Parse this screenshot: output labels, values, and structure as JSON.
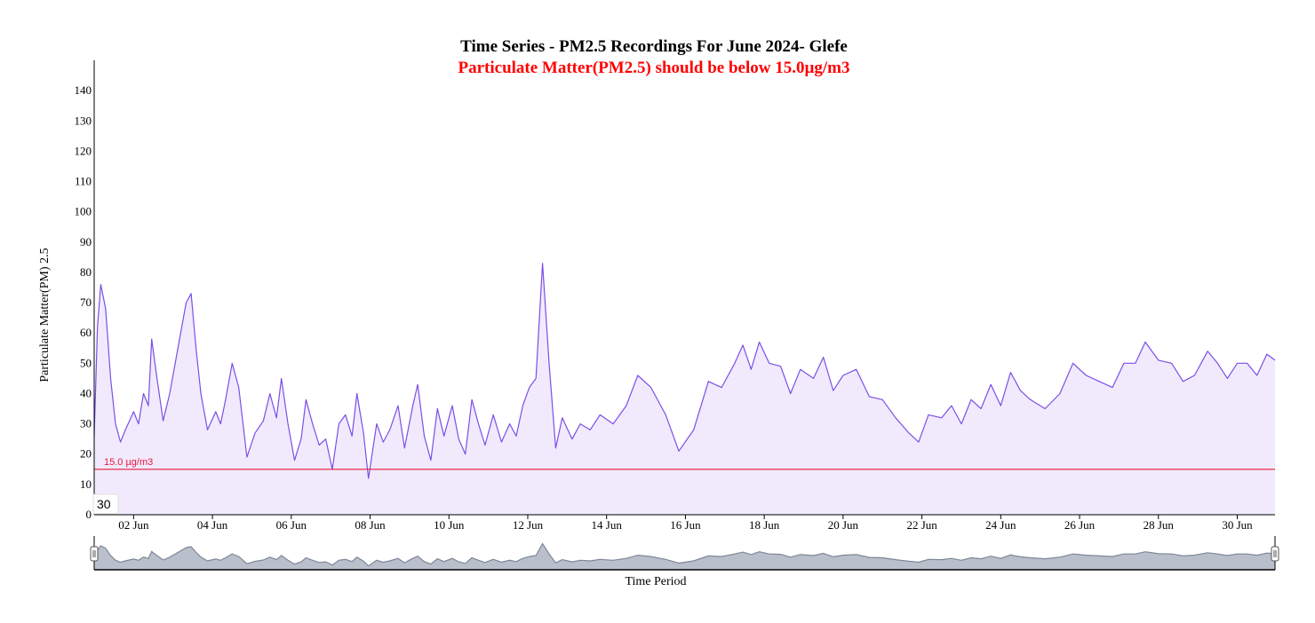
{
  "chart_data": {
    "type": "area",
    "title": "Time Series - PM2.5 Recordings For June 2024- Glefe",
    "subtitle": "Particulate Matter(PM2.5) should be below 15.0µg/m3",
    "xlabel": "Time Period",
    "ylabel": "Particulate Matter(PM) 2.5",
    "ylim": [
      0,
      150
    ],
    "xlim": [
      "2024-06-01 00:00",
      "2024-06-30 23:00"
    ],
    "y_ticks": [
      "0",
      "10",
      "20",
      "30",
      "40",
      "50",
      "60",
      "70",
      "80",
      "90",
      "100",
      "110",
      "120",
      "130",
      "140"
    ],
    "x_ticks": [
      "02 Jun",
      "04 Jun",
      "06 Jun",
      "08 Jun",
      "10 Jun",
      "12 Jun",
      "14 Jun",
      "16 Jun",
      "18 Jun",
      "20 Jun",
      "22 Jun",
      "24 Jun",
      "26 Jun",
      "28 Jun",
      "30 Jun"
    ],
    "threshold": {
      "value": 15,
      "label": "15.0 µg/m3",
      "color": "#e8193c"
    },
    "hover_value": "30",
    "series": [
      {
        "color": "#7b4fe6",
        "fill": "#f1eafd",
        "points": [
          [
            "2024-06-01 00:00",
            26
          ],
          [
            "2024-06-01 02:00",
            62
          ],
          [
            "2024-06-01 04:00",
            76
          ],
          [
            "2024-06-01 07:00",
            68
          ],
          [
            "2024-06-01 10:00",
            45
          ],
          [
            "2024-06-01 13:00",
            30
          ],
          [
            "2024-06-01 16:00",
            24
          ],
          [
            "2024-06-01 19:00",
            28
          ],
          [
            "2024-06-02 00:00",
            34
          ],
          [
            "2024-06-02 03:00",
            30
          ],
          [
            "2024-06-02 06:00",
            40
          ],
          [
            "2024-06-02 09:00",
            36
          ],
          [
            "2024-06-02 11:00",
            58
          ],
          [
            "2024-06-02 14:00",
            46
          ],
          [
            "2024-06-02 18:00",
            31
          ],
          [
            "2024-06-02 22:00",
            40
          ],
          [
            "2024-06-03 04:00",
            58
          ],
          [
            "2024-06-03 08:00",
            70
          ],
          [
            "2024-06-03 11:00",
            73
          ],
          [
            "2024-06-03 14:00",
            55
          ],
          [
            "2024-06-03 17:00",
            40
          ],
          [
            "2024-06-03 21:00",
            28
          ],
          [
            "2024-06-04 02:00",
            34
          ],
          [
            "2024-06-04 05:00",
            30
          ],
          [
            "2024-06-04 08:00",
            38
          ],
          [
            "2024-06-04 12:00",
            50
          ],
          [
            "2024-06-04 16:00",
            42
          ],
          [
            "2024-06-04 21:00",
            19
          ],
          [
            "2024-06-05 02:00",
            27
          ],
          [
            "2024-06-05 07:00",
            31
          ],
          [
            "2024-06-05 11:00",
            40
          ],
          [
            "2024-06-05 15:00",
            32
          ],
          [
            "2024-06-05 18:00",
            45
          ],
          [
            "2024-06-05 22:00",
            30
          ],
          [
            "2024-06-06 02:00",
            18
          ],
          [
            "2024-06-06 06:00",
            25
          ],
          [
            "2024-06-06 09:00",
            38
          ],
          [
            "2024-06-06 13:00",
            30
          ],
          [
            "2024-06-06 17:00",
            23
          ],
          [
            "2024-06-06 21:00",
            25
          ],
          [
            "2024-06-07 01:00",
            15
          ],
          [
            "2024-06-07 05:00",
            30
          ],
          [
            "2024-06-07 09:00",
            33
          ],
          [
            "2024-06-07 13:00",
            26
          ],
          [
            "2024-06-07 16:00",
            40
          ],
          [
            "2024-06-07 20:00",
            27
          ],
          [
            "2024-06-07 23:00",
            12
          ],
          [
            "2024-06-08 04:00",
            30
          ],
          [
            "2024-06-08 08:00",
            24
          ],
          [
            "2024-06-08 12:00",
            28
          ],
          [
            "2024-06-08 17:00",
            36
          ],
          [
            "2024-06-08 21:00",
            22
          ],
          [
            "2024-06-09 02:00",
            36
          ],
          [
            "2024-06-09 05:00",
            43
          ],
          [
            "2024-06-09 09:00",
            26
          ],
          [
            "2024-06-09 13:00",
            18
          ],
          [
            "2024-06-09 17:00",
            35
          ],
          [
            "2024-06-09 21:00",
            26
          ],
          [
            "2024-06-10 02:00",
            36
          ],
          [
            "2024-06-10 06:00",
            25
          ],
          [
            "2024-06-10 10:00",
            20
          ],
          [
            "2024-06-10 14:00",
            38
          ],
          [
            "2024-06-10 18:00",
            30
          ],
          [
            "2024-06-10 22:00",
            23
          ],
          [
            "2024-06-11 03:00",
            33
          ],
          [
            "2024-06-11 08:00",
            24
          ],
          [
            "2024-06-11 13:00",
            30
          ],
          [
            "2024-06-11 17:00",
            26
          ],
          [
            "2024-06-11 21:00",
            36
          ],
          [
            "2024-06-12 01:00",
            42
          ],
          [
            "2024-06-12 05:00",
            45
          ],
          [
            "2024-06-12 09:00",
            83
          ],
          [
            "2024-06-12 13:00",
            50
          ],
          [
            "2024-06-12 17:00",
            22
          ],
          [
            "2024-06-12 21:00",
            32
          ],
          [
            "2024-06-13 03:00",
            25
          ],
          [
            "2024-06-13 08:00",
            30
          ],
          [
            "2024-06-13 14:00",
            28
          ],
          [
            "2024-06-13 20:00",
            33
          ],
          [
            "2024-06-14 04:00",
            30
          ],
          [
            "2024-06-14 12:00",
            36
          ],
          [
            "2024-06-14 19:00",
            46
          ],
          [
            "2024-06-15 03:00",
            42
          ],
          [
            "2024-06-15 12:00",
            33
          ],
          [
            "2024-06-15 20:00",
            21
          ],
          [
            "2024-06-16 05:00",
            28
          ],
          [
            "2024-06-16 14:00",
            44
          ],
          [
            "2024-06-16 22:00",
            42
          ],
          [
            "2024-06-17 06:00",
            50
          ],
          [
            "2024-06-17 11:00",
            56
          ],
          [
            "2024-06-17 16:00",
            48
          ],
          [
            "2024-06-17 21:00",
            57
          ],
          [
            "2024-06-18 03:00",
            50
          ],
          [
            "2024-06-18 10:00",
            49
          ],
          [
            "2024-06-18 16:00",
            40
          ],
          [
            "2024-06-18 22:00",
            48
          ],
          [
            "2024-06-19 06:00",
            45
          ],
          [
            "2024-06-19 12:00",
            52
          ],
          [
            "2024-06-19 18:00",
            41
          ],
          [
            "2024-06-20 00:00",
            46
          ],
          [
            "2024-06-20 08:00",
            48
          ],
          [
            "2024-06-20 16:00",
            39
          ],
          [
            "2024-06-21 00:00",
            38
          ],
          [
            "2024-06-21 08:00",
            32
          ],
          [
            "2024-06-21 16:00",
            27
          ],
          [
            "2024-06-21 22:00",
            24
          ],
          [
            "2024-06-22 04:00",
            33
          ],
          [
            "2024-06-22 12:00",
            32
          ],
          [
            "2024-06-22 18:00",
            36
          ],
          [
            "2024-06-23 00:00",
            30
          ],
          [
            "2024-06-23 06:00",
            38
          ],
          [
            "2024-06-23 12:00",
            35
          ],
          [
            "2024-06-23 18:00",
            43
          ],
          [
            "2024-06-24 00:00",
            36
          ],
          [
            "2024-06-24 06:00",
            47
          ],
          [
            "2024-06-24 12:00",
            41
          ],
          [
            "2024-06-24 18:00",
            38
          ],
          [
            "2024-06-25 03:00",
            35
          ],
          [
            "2024-06-25 12:00",
            40
          ],
          [
            "2024-06-25 20:00",
            50
          ],
          [
            "2024-06-26 04:00",
            46
          ],
          [
            "2024-06-26 12:00",
            44
          ],
          [
            "2024-06-26 20:00",
            42
          ],
          [
            "2024-06-27 03:00",
            50
          ],
          [
            "2024-06-27 10:00",
            50
          ],
          [
            "2024-06-27 16:00",
            57
          ],
          [
            "2024-06-28 00:00",
            51
          ],
          [
            "2024-06-28 08:00",
            50
          ],
          [
            "2024-06-28 15:00",
            44
          ],
          [
            "2024-06-28 22:00",
            46
          ],
          [
            "2024-06-29 06:00",
            54
          ],
          [
            "2024-06-29 12:00",
            50
          ],
          [
            "2024-06-29 18:00",
            45
          ],
          [
            "2024-06-30 00:00",
            50
          ],
          [
            "2024-06-30 06:00",
            50
          ],
          [
            "2024-06-30 12:00",
            46
          ],
          [
            "2024-06-30 18:00",
            53
          ],
          [
            "2024-06-30 23:00",
            51
          ]
        ]
      }
    ]
  }
}
